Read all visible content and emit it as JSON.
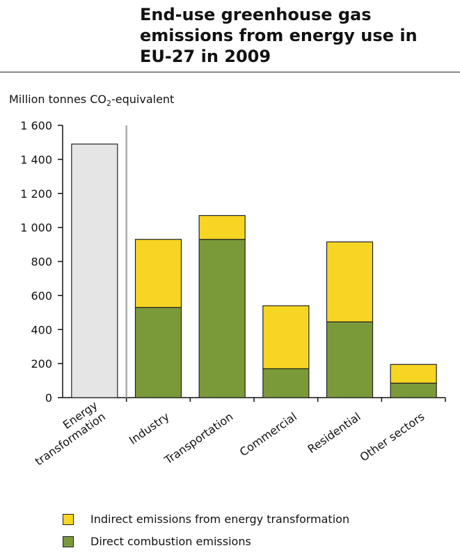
{
  "title_lines": [
    "End-use greenhouse gas",
    "emissions from energy use in",
    "EU-27 in 2009"
  ],
  "unit_label": {
    "main": "Million tonnes CO",
    "sub": "2",
    "rest": "-equivalent"
  },
  "chart_data": {
    "type": "bar",
    "stacked": true,
    "categories": [
      "Energy transformation",
      "Industry",
      "Transportation",
      "Commercial",
      "Residential",
      "Other sectors"
    ],
    "category_label_lines": [
      [
        "Energy",
        "transformation"
      ],
      [
        "Industry"
      ],
      [
        "Transportation"
      ],
      [
        "Commercial"
      ],
      [
        "Residential"
      ],
      [
        "Other sectors"
      ]
    ],
    "energy_transformation_total": 1490,
    "series": [
      {
        "name": "Direct combustion emissions",
        "values": [
          null,
          530,
          930,
          170,
          445,
          85
        ],
        "color": "#7a9a3a"
      },
      {
        "name": "Indirect emissions from energy transformation",
        "values": [
          null,
          400,
          140,
          370,
          470,
          110
        ],
        "color": "#f7d523"
      }
    ],
    "energy_transformation_color": "#e5e5e5",
    "ylim": [
      0,
      1600
    ],
    "yticks": [
      0,
      200,
      400,
      600,
      800,
      1000,
      1200,
      1400,
      1600
    ],
    "ytick_labels": [
      "0",
      "200",
      "400",
      "600",
      "800",
      "1 000",
      "1 200",
      "1 400",
      "1 600"
    ],
    "grid": false,
    "legend_placement": "bottom",
    "legend_order": [
      "Indirect emissions from energy transformation",
      "Direct combustion emissions"
    ]
  }
}
